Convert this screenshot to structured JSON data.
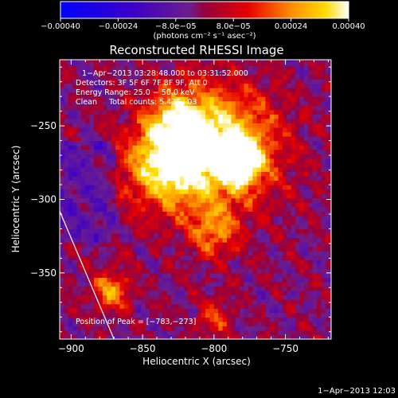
{
  "chart_data": {
    "type": "heatmap",
    "title": "Reconstructed RHESSI Image",
    "xlabel": "Heliocentric X (arcsec)",
    "ylabel": "Heliocentric Y (arcsec)",
    "xlim": [
      -908,
      -718
    ],
    "ylim": [
      -395,
      -205
    ],
    "x_ticks": [
      -900,
      -850,
      -800,
      -750
    ],
    "x_tick_labels": [
      "−900",
      "−850",
      "−800",
      "−750"
    ],
    "y_ticks": [
      -250,
      -300,
      -350
    ],
    "y_tick_labels": [
      "−250",
      "−300",
      "−350"
    ],
    "colorbar": {
      "range": [
        -0.0004,
        0.0004
      ],
      "ticks": [
        -0.0004,
        -0.00024,
        -8e-05,
        8e-05,
        0.00024,
        0.0004
      ],
      "tick_labels": [
        "−0.00040",
        "−0.00024",
        "−8.0e−05",
        "8.0e−05",
        "0.00024",
        "0.00040"
      ],
      "unit_label": "(photons cm⁻² s⁻¹ asec⁻²)"
    },
    "annotations": [
      "1−Apr−2013 03:28:48.000 to 03:31:52.000",
      "Detectors: 3F 5F 6F 7F 8F 9F, Att 0",
      "Energy Range: 25.0 − 50.0 keV",
      "Clean     Total counts: 5.43E+03",
      "Position of Peak = [−783,−273]"
    ],
    "peak_position": [
      -783,
      -273
    ],
    "sources": [
      {
        "x": -795,
        "y": -265,
        "sigma": 28,
        "amp": 0.0004
      },
      {
        "x": -835,
        "y": -278,
        "sigma": 20,
        "amp": 0.00034
      },
      {
        "x": -783,
        "y": -273,
        "sigma": 10,
        "amp": 0.0004
      },
      {
        "x": -825,
        "y": -248,
        "sigma": 16,
        "amp": 0.00026
      },
      {
        "x": -800,
        "y": -322,
        "sigma": 12,
        "amp": 0.00022
      },
      {
        "x": -872,
        "y": -362,
        "sigma": 9,
        "amp": 0.00028
      },
      {
        "x": -800,
        "y": -380,
        "sigma": 9,
        "amp": 0.00016
      }
    ],
    "limb_line": [
      [
        -908,
        -308
      ],
      [
        -870,
        -395
      ]
    ]
  },
  "footer": {
    "date": "1−Apr−2013 12:03"
  }
}
